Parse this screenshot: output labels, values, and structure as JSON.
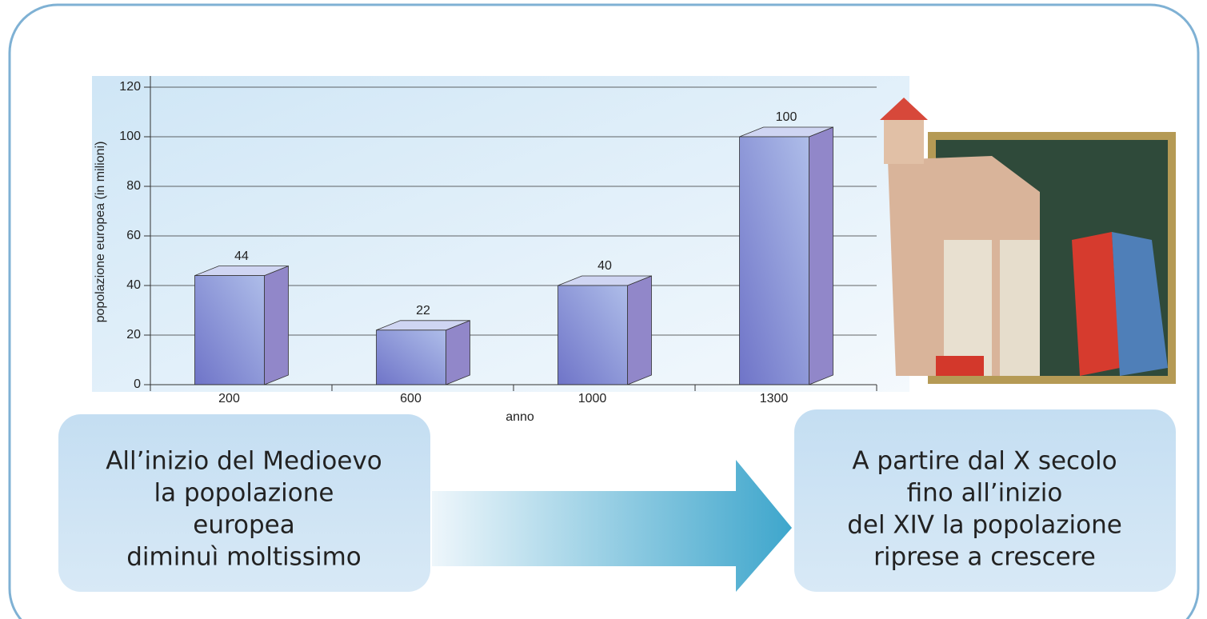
{
  "chart_data": {
    "type": "bar",
    "categories": [
      "200",
      "600",
      "1000",
      "1300"
    ],
    "values": [
      44,
      22,
      40,
      100
    ],
    "color": "#8f9ad8",
    "xlabel": "anno",
    "ylabel": "popolazione europea (in milioni)",
    "ylim": [
      0,
      120
    ],
    "yticks": [
      0,
      20,
      40,
      60,
      80,
      100,
      120
    ],
    "grid": true,
    "annotations": [
      {
        "lines": [
          "All’inizio del Medioevo",
          "la popolazione",
          "europea",
          "diminuì moltissimo"
        ]
      },
      {
        "lines": [
          "A partire dal X secolo",
          "fino all’inizio",
          "del XIV la popolazione",
          "riprese a crescere"
        ]
      }
    ]
  }
}
